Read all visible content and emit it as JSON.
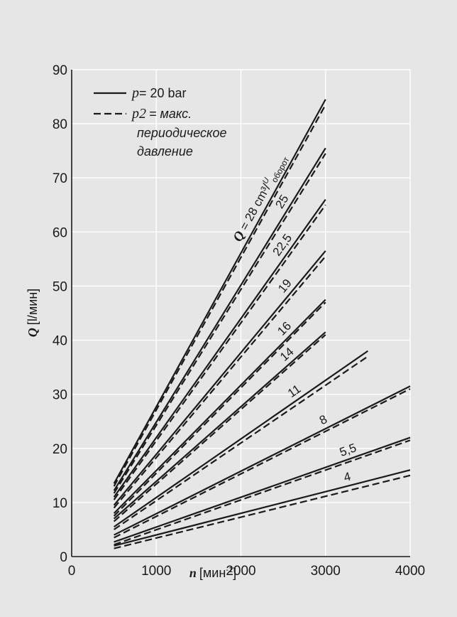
{
  "chart_data": {
    "type": "line",
    "title": "",
    "xlabel": {
      "symbol": "n",
      "unit": "[мин",
      "unit_exp": "-1",
      "unit_close": "]"
    },
    "ylabel": {
      "symbol": "Q",
      "unit": "[l/мин]"
    },
    "xlim": [
      0,
      4000
    ],
    "ylim": [
      0,
      90
    ],
    "xticks": [
      0,
      1000,
      2000,
      3000,
      4000
    ],
    "yticks": [
      0,
      10,
      20,
      30,
      40,
      50,
      60,
      70,
      80,
      90
    ],
    "grid": true,
    "legend": {
      "placement": "top-left",
      "solid": {
        "symbol": "p",
        "text": "= 20 bar"
      },
      "dashed": {
        "symbol": "p2",
        "lines": [
          "= макс.",
          "периодическое",
          "давление"
        ]
      }
    },
    "displacement_unit": {
      "prefix": "Q = ",
      "value": "28",
      "unit": " cm³/",
      "sup": "U",
      "sub": "оборот"
    },
    "series": [
      {
        "label": "4",
        "x": [
          500,
          4000
        ],
        "solid": [
          2.0,
          16.0
        ],
        "dashed": [
          1.5,
          15.0
        ]
      },
      {
        "label": "5,5",
        "x": [
          500,
          4000
        ],
        "solid": [
          2.7,
          22.0
        ],
        "dashed": [
          2.2,
          21.5
        ]
      },
      {
        "label": "8",
        "x": [
          500,
          4000
        ],
        "solid": [
          4.0,
          31.5
        ],
        "dashed": [
          3.5,
          31.0
        ]
      },
      {
        "label": "11",
        "x": [
          500,
          3500
        ],
        "solid": [
          5.5,
          38.0
        ],
        "dashed": [
          5.0,
          37.0
        ]
      },
      {
        "label": "14",
        "x": [
          500,
          3000
        ],
        "solid": [
          7.0,
          41.5
        ],
        "dashed": [
          6.5,
          41.0
        ]
      },
      {
        "label": "16",
        "x": [
          500,
          3000
        ],
        "solid": [
          8.0,
          47.5
        ],
        "dashed": [
          7.5,
          47.0
        ]
      },
      {
        "label": "19",
        "x": [
          500,
          3000
        ],
        "solid": [
          9.5,
          56.5
        ],
        "dashed": [
          9.0,
          55.5
        ]
      },
      {
        "label": "22,5",
        "x": [
          500,
          3000
        ],
        "solid": [
          11.0,
          66.0
        ],
        "dashed": [
          10.5,
          65.0
        ]
      },
      {
        "label": "25",
        "x": [
          500,
          3000
        ],
        "solid": [
          12.2,
          75.5
        ],
        "dashed": [
          11.7,
          74.5
        ]
      },
      {
        "label": "28",
        "x": [
          500,
          3000
        ],
        "solid": [
          13.5,
          84.5
        ],
        "dashed": [
          13.0,
          83.5
        ]
      }
    ]
  }
}
